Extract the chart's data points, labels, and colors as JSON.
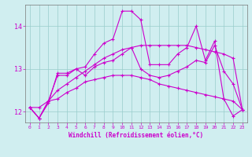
{
  "xlabel": "Windchill (Refroidissement éolien,°C)",
  "background_color": "#d0eef0",
  "line_color": "#cc00cc",
  "grid_color": "#99cccc",
  "xlim": [
    -0.5,
    23.5
  ],
  "ylim": [
    11.75,
    14.5
  ],
  "yticks": [
    12,
    13,
    14
  ],
  "xticks": [
    0,
    1,
    2,
    3,
    4,
    5,
    6,
    7,
    8,
    9,
    10,
    11,
    12,
    13,
    14,
    15,
    16,
    17,
    18,
    19,
    20,
    21,
    22,
    23
  ],
  "series": [
    [
      12.1,
      11.85,
      12.2,
      12.9,
      12.9,
      13.0,
      13.05,
      13.35,
      13.6,
      13.7,
      14.35,
      14.35,
      14.15,
      13.1,
      13.1,
      13.1,
      13.35,
      13.5,
      14.0,
      13.2,
      13.65,
      12.3,
      11.9,
      12.05
    ],
    [
      12.1,
      11.85,
      12.25,
      12.85,
      12.85,
      13.0,
      12.85,
      13.05,
      13.15,
      13.2,
      13.35,
      13.5,
      13.0,
      12.85,
      12.8,
      12.85,
      12.95,
      13.05,
      13.2,
      13.15,
      13.55,
      12.95,
      12.65,
      12.05
    ],
    [
      12.1,
      11.85,
      12.25,
      12.3,
      12.45,
      12.55,
      12.7,
      12.75,
      12.8,
      12.85,
      12.85,
      12.85,
      12.8,
      12.75,
      12.65,
      12.6,
      12.55,
      12.5,
      12.45,
      12.4,
      12.35,
      12.3,
      12.25,
      12.05
    ],
    [
      12.1,
      12.1,
      12.25,
      12.5,
      12.65,
      12.8,
      12.95,
      13.1,
      13.25,
      13.35,
      13.45,
      13.5,
      13.55,
      13.55,
      13.55,
      13.55,
      13.55,
      13.55,
      13.5,
      13.45,
      13.4,
      13.35,
      13.25,
      12.05
    ]
  ]
}
